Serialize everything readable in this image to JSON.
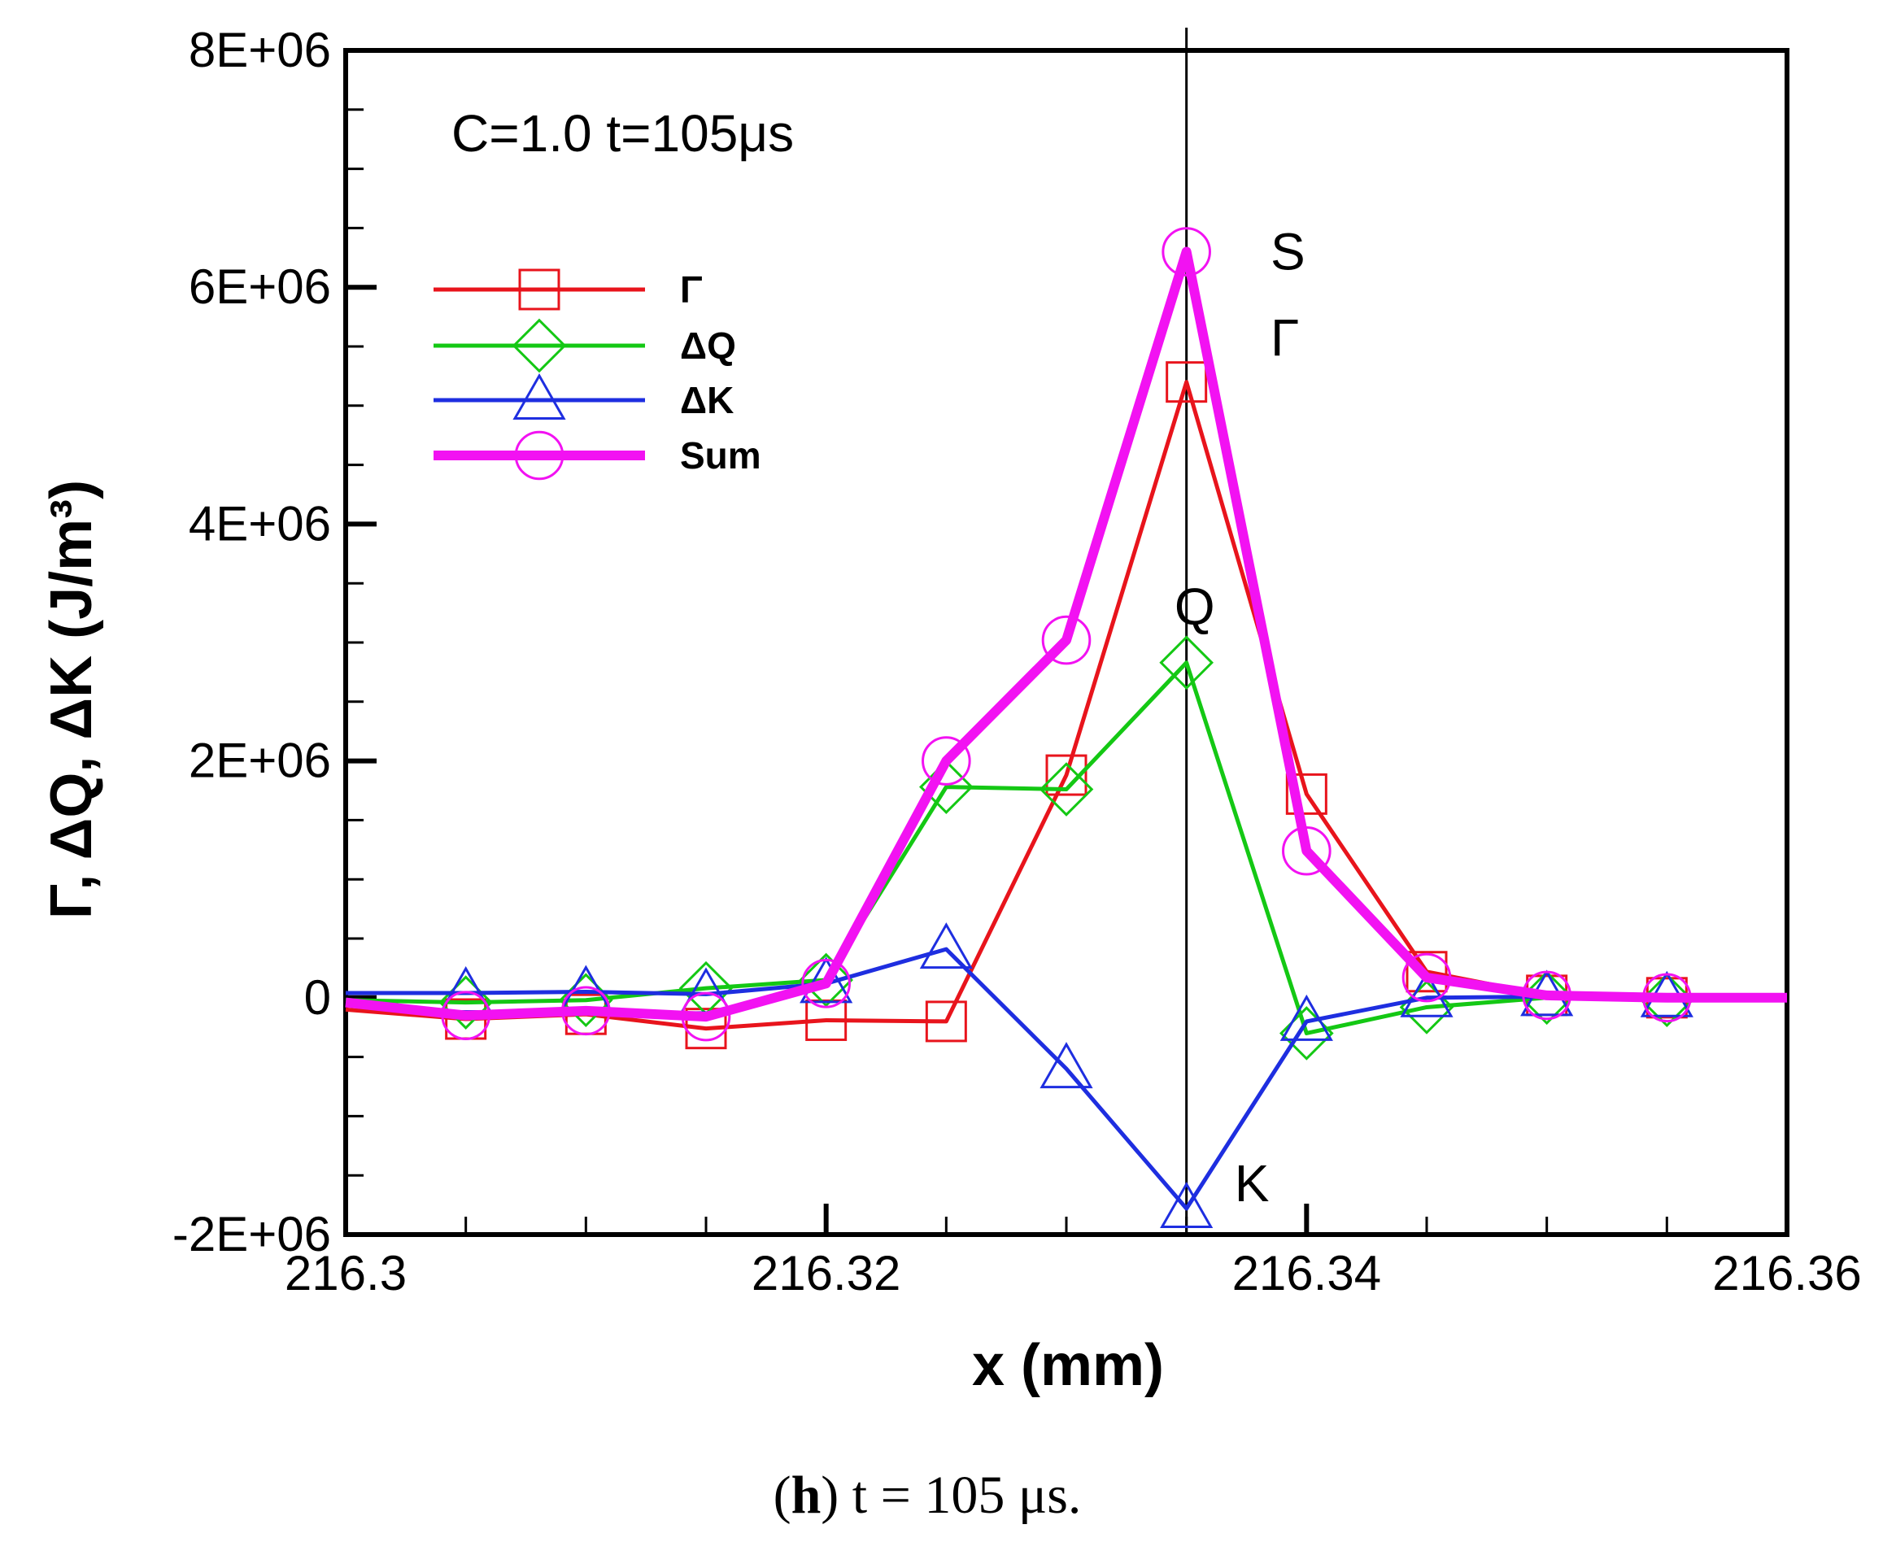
{
  "chart_data": {
    "type": "line",
    "note_text": "C=1.0 t=105μs",
    "xlabel": "x (mm)",
    "ylabel": "Γ, ΔQ, ΔK (J/m³)",
    "xlim": [
      216.3,
      216.36
    ],
    "ylim": [
      -2000000,
      8000000
    ],
    "x_ticks": [
      216.3,
      216.32,
      216.34,
      216.36
    ],
    "x_tick_labels": [
      "216.3",
      "216.32",
      "216.34",
      "216.36"
    ],
    "y_ticks": [
      -2000000,
      0,
      2000000,
      4000000,
      6000000,
      8000000
    ],
    "y_tick_labels": [
      "-2E+06",
      "0",
      "2E+06",
      "4E+06",
      "6E+06",
      "8E+06"
    ],
    "vertical_line_x": 216.335,
    "legend_position": "upper-left",
    "x": [
      216.3,
      216.305,
      216.31,
      216.315,
      216.32,
      216.325,
      216.33,
      216.335,
      216.34,
      216.345,
      216.35,
      216.355,
      216.36
    ],
    "series": [
      {
        "name": "Γ",
        "color": "#e8141c",
        "marker": "square",
        "width": 5,
        "values": [
          -100000,
          -180000,
          -140000,
          -260000,
          -190000,
          -200000,
          1880000,
          5200000,
          1720000,
          220000,
          20000,
          0,
          0
        ]
      },
      {
        "name": "ΔQ",
        "color": "#14c814",
        "marker": "diamond",
        "width": 5,
        "values": [
          -20000,
          -40000,
          -20000,
          80000,
          150000,
          1780000,
          1760000,
          2830000,
          -300000,
          -80000,
          0,
          -20000,
          0
        ]
      },
      {
        "name": "ΔK",
        "color": "#1e2ee0",
        "marker": "triangle",
        "width": 5,
        "values": [
          40000,
          40000,
          50000,
          30000,
          120000,
          410000,
          -600000,
          -1780000,
          -200000,
          0,
          10000,
          0,
          0
        ]
      },
      {
        "name": "Sum",
        "color": "#f212f2",
        "marker": "circle",
        "width": 12,
        "values": [
          -40000,
          -150000,
          -110000,
          -160000,
          120000,
          2000000,
          3020000,
          6300000,
          1240000,
          170000,
          20000,
          0,
          0
        ]
      }
    ],
    "annotations": [
      {
        "text": "S",
        "x": 216.3385,
        "y": 6150000
      },
      {
        "text": "Γ",
        "x": 216.3385,
        "y": 5420000
      },
      {
        "text": "Q",
        "x": 216.3345,
        "y": 3150000
      },
      {
        "text": "K",
        "x": 216.337,
        "y": -1720000
      }
    ]
  },
  "caption": {
    "letter": "h",
    "text": " t = 105 μs."
  }
}
